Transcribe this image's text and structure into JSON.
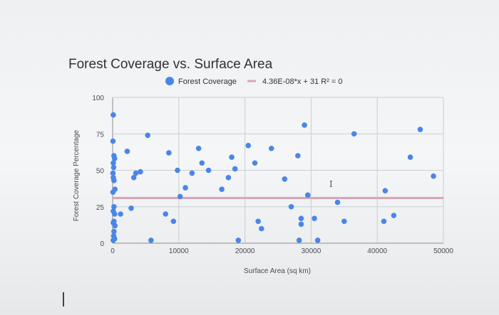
{
  "chart_data": {
    "type": "scatter",
    "title": "Forest Coverage  vs. Surface Area",
    "xlabel": "Surface Area (sq km)",
    "ylabel": "Forest Coverage Percentage",
    "xlim": [
      0,
      50000
    ],
    "ylim": [
      0,
      100
    ],
    "x_ticks": [
      "0",
      "10000",
      "20000",
      "30000",
      "40000",
      "50000"
    ],
    "y_ticks": [
      "0",
      "25",
      "50",
      "75",
      "100"
    ],
    "grid": true,
    "legend_position": "top",
    "legend": {
      "series_label": "Forest Coverage",
      "trendline_label": "4.36E-08*x + 31 R² = 0"
    },
    "colors": {
      "points": "#4a86e8",
      "trendline": "#d9a5b7"
    },
    "trendline": {
      "slope": 4.36e-08,
      "intercept": 31
    },
    "series": [
      {
        "name": "Forest Coverage",
        "points": [
          [
            100,
            88
          ],
          [
            50,
            70
          ],
          [
            200,
            60
          ],
          [
            300,
            58
          ],
          [
            100,
            55
          ],
          [
            150,
            52
          ],
          [
            50,
            48
          ],
          [
            100,
            45
          ],
          [
            200,
            43
          ],
          [
            50,
            35
          ],
          [
            350,
            37
          ],
          [
            200,
            25
          ],
          [
            100,
            22
          ],
          [
            300,
            20
          ],
          [
            200,
            15
          ],
          [
            100,
            14
          ],
          [
            350,
            12
          ],
          [
            200,
            8
          ],
          [
            150,
            5
          ],
          [
            300,
            3
          ],
          [
            100,
            2
          ],
          [
            1200,
            20
          ],
          [
            2200,
            63
          ],
          [
            3500,
            48
          ],
          [
            2800,
            24
          ],
          [
            3200,
            45
          ],
          [
            4200,
            49
          ],
          [
            5300,
            74
          ],
          [
            5800,
            2
          ],
          [
            8500,
            62
          ],
          [
            8000,
            20
          ],
          [
            9200,
            15
          ],
          [
            9800,
            50
          ],
          [
            10200,
            32
          ],
          [
            11000,
            38
          ],
          [
            12000,
            48
          ],
          [
            13000,
            65
          ],
          [
            13500,
            55
          ],
          [
            14500,
            50
          ],
          [
            16500,
            37
          ],
          [
            17500,
            45
          ],
          [
            18000,
            59
          ],
          [
            18500,
            51
          ],
          [
            19000,
            2
          ],
          [
            20500,
            67
          ],
          [
            21500,
            55
          ],
          [
            22000,
            15
          ],
          [
            22500,
            10
          ],
          [
            24000,
            65
          ],
          [
            26000,
            44
          ],
          [
            27000,
            25
          ],
          [
            28000,
            60
          ],
          [
            28500,
            17
          ],
          [
            28500,
            13
          ],
          [
            29000,
            81
          ],
          [
            29500,
            33
          ],
          [
            30500,
            17
          ],
          [
            31000,
            2
          ],
          [
            28200,
            2
          ],
          [
            34000,
            28
          ],
          [
            35000,
            15
          ],
          [
            36500,
            75
          ],
          [
            41000,
            15
          ],
          [
            41200,
            36
          ],
          [
            42500,
            19
          ],
          [
            45000,
            59
          ],
          [
            46500,
            78
          ],
          [
            48500,
            46
          ]
        ]
      }
    ]
  }
}
